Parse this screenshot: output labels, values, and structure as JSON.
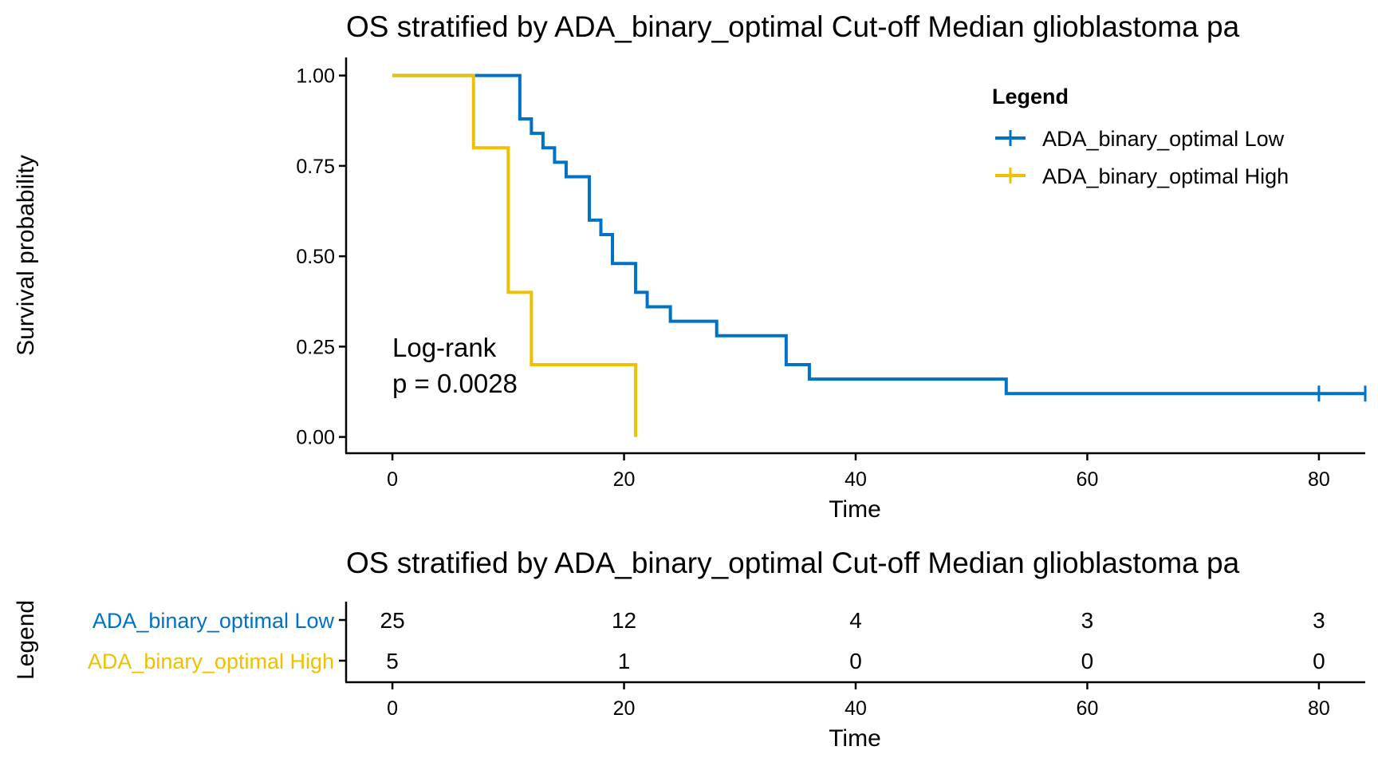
{
  "chart_data": [
    {
      "type": "line",
      "subtype": "kaplan-meier",
      "title": "OS stratified by ADA_binary_optimal Cut-off Median glioblastoma pa",
      "xlabel": "Time",
      "ylabel": "Survival probability",
      "xlim": [
        -4,
        84
      ],
      "ylim": [
        -0.045,
        1.05
      ],
      "x_ticks": [
        0,
        20,
        40,
        60,
        80
      ],
      "y_ticks": [
        0,
        0.25,
        0.5,
        0.75,
        1.0
      ],
      "y_tick_labels": [
        "0.00",
        "0.25",
        "0.50",
        "0.75",
        "1.00"
      ],
      "grid": false,
      "annotation": [
        "Log-rank",
        "p = 0.0028"
      ],
      "legend": {
        "title": "Legend",
        "position": "top-right",
        "entries": [
          "ADA_binary_optimal Low",
          "ADA_binary_optimal High"
        ]
      },
      "series": [
        {
          "name": "ADA_binary_optimal Low",
          "color": "#0072c6",
          "x": [
            0,
            11,
            12,
            13,
            14,
            15,
            17,
            18,
            19,
            21,
            22,
            24,
            28,
            34,
            36,
            53,
            84
          ],
          "y": [
            1.0,
            0.88,
            0.84,
            0.8,
            0.76,
            0.72,
            0.6,
            0.56,
            0.48,
            0.4,
            0.36,
            0.32,
            0.28,
            0.2,
            0.16,
            0.12,
            0.12
          ],
          "censor_x": [
            80,
            84
          ],
          "censor_y": [
            0.12,
            0.12
          ]
        },
        {
          "name": "ADA_binary_optimal High",
          "color": "#efc000",
          "x": [
            0,
            7,
            10,
            12,
            21
          ],
          "y": [
            1.0,
            0.8,
            0.4,
            0.2,
            0.0
          ],
          "censor_x": [],
          "censor_y": []
        }
      ]
    },
    {
      "type": "table",
      "title": "OS stratified by ADA_binary_optimal Cut-off Median glioblastoma pa",
      "xlabel": "Time",
      "ylabel": "Legend",
      "xlim": [
        -4,
        84
      ],
      "x_ticks": [
        0,
        20,
        40,
        60,
        80
      ],
      "rows": [
        {
          "name": "ADA_binary_optimal Low",
          "color": "#0072c6",
          "values": [
            25,
            12,
            4,
            3,
            3
          ]
        },
        {
          "name": "ADA_binary_optimal High",
          "color": "#efc000",
          "values": [
            5,
            1,
            0,
            0,
            0
          ]
        }
      ]
    }
  ]
}
